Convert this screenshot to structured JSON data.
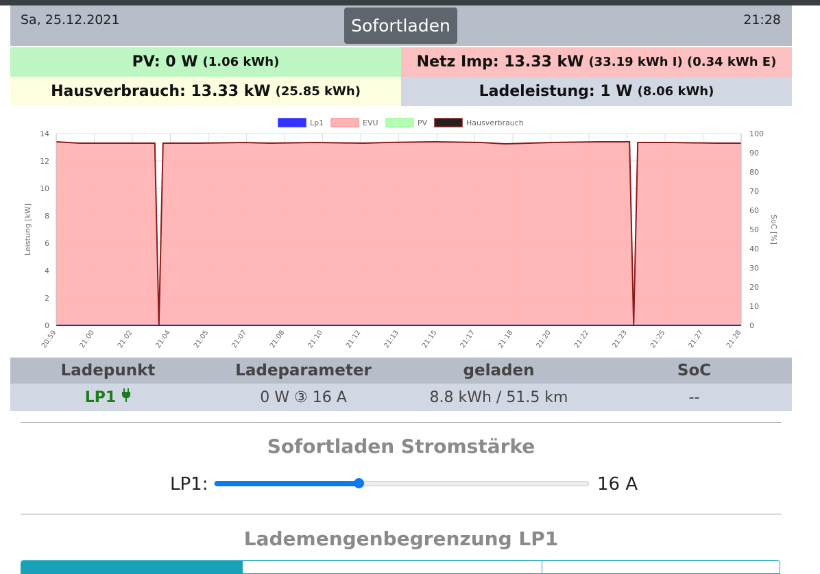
{
  "header": {
    "date": "Sa, 25.12.2021",
    "time": "21:28",
    "mode_button": "Sofortladen"
  },
  "tiles": {
    "pv": {
      "label": "PV: 0 W",
      "sub": "(1.06 kWh)"
    },
    "netz": {
      "label": "Netz Imp: 13.33 kW",
      "sub": "(33.19 kWh I) (0.34 kWh E)"
    },
    "haus": {
      "label": "Hausverbrauch: 13.33 kW",
      "sub": "(25.85 kWh)"
    },
    "lade": {
      "label": "Ladeleistung: 1 W",
      "sub": "(8.06 kWh)"
    }
  },
  "chart_data": {
    "type": "area",
    "legend_placement": "top-center",
    "grid": true,
    "ylabel": "Leistung [kW]",
    "y2label": "SoC [%]",
    "ylim": [
      0,
      14
    ],
    "y2lim": [
      0,
      100
    ],
    "yticks": [
      0,
      2,
      4,
      6,
      8,
      10,
      12,
      14
    ],
    "y2ticks": [
      0,
      10,
      20,
      30,
      40,
      50,
      60,
      70,
      80,
      90,
      100
    ],
    "xticks": [
      "20:59",
      "21:00",
      "21:02",
      "21:04",
      "21:05",
      "21:07",
      "21:08",
      "21:10",
      "21:12",
      "21:13",
      "21:15",
      "21:17",
      "21:18",
      "21:20",
      "21:22",
      "21:23",
      "21:25",
      "21:27",
      "21:28"
    ],
    "x": [
      "20:59",
      "21:00",
      "21:02",
      "21:03",
      "21:04",
      "21:05",
      "21:07",
      "21:08",
      "21:10",
      "21:12",
      "21:13",
      "21:15",
      "21:17",
      "21:18",
      "21:20",
      "21:22",
      "21:23",
      "21:24",
      "21:25",
      "21:27",
      "21:28"
    ],
    "series": [
      {
        "name": "Lp1",
        "color": "#3333ff",
        "fill": "#3333ff",
        "values": [
          0,
          0,
          0,
          0,
          0,
          0,
          0,
          0,
          0,
          0,
          0,
          0,
          0,
          0,
          0,
          0,
          0,
          0,
          0,
          0,
          0
        ]
      },
      {
        "name": "EVU",
        "color": "#ff9999",
        "fill": "#ffb3b3",
        "values": [
          13.4,
          13.3,
          13.3,
          0,
          13.3,
          13.3,
          13.35,
          13.3,
          13.35,
          13.3,
          13.35,
          13.4,
          13.35,
          13.25,
          13.35,
          13.4,
          13.4,
          0,
          13.35,
          13.3,
          13.3
        ]
      },
      {
        "name": "PV",
        "color": "#99ff99",
        "fill": "#b3ffb3",
        "values": [
          0,
          0,
          0,
          0,
          0,
          0,
          0,
          0,
          0,
          0,
          0,
          0,
          0,
          0,
          0,
          0,
          0,
          0,
          0,
          0,
          0
        ]
      },
      {
        "name": "Hausverbrauch",
        "color": "#8b1a1a",
        "fill": "#222222",
        "values": [
          13.4,
          13.3,
          13.3,
          0,
          13.3,
          13.3,
          13.35,
          13.3,
          13.35,
          13.3,
          13.35,
          13.4,
          13.35,
          13.25,
          13.35,
          13.4,
          13.4,
          0,
          13.35,
          13.3,
          13.3
        ]
      }
    ]
  },
  "table": {
    "headers": [
      "Ladepunkt",
      "Ladeparameter",
      "geladen",
      "SoC"
    ],
    "row": {
      "lp": "LP1",
      "param": "0 W ③ 16 A",
      "charged": "8.8 kWh / 51.5 km",
      "soc": "--"
    }
  },
  "slider_section": {
    "title": "Sofortladen Stromstärke",
    "label": "LP1:",
    "value_text": "16 A",
    "value": 16,
    "min": 6,
    "max": 32
  },
  "limit_section": {
    "title": "Lademengenbegrenzung LP1"
  },
  "colors": {
    "accent": "#0a7cf2",
    "teal": "#17a2b8",
    "lp_green": "#1d7a1d"
  }
}
